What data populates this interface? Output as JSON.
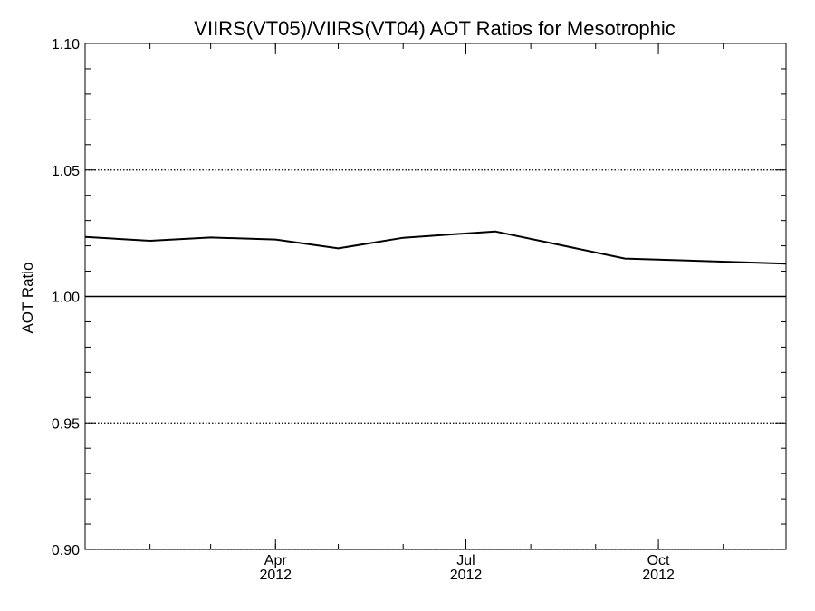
{
  "chart_data": {
    "type": "line",
    "title": "VIIRS(VT05)/VIIRS(VT04)  AOT Ratios for Mesotrophic",
    "ylabel": "AOT Ratio",
    "xlabel": "",
    "xlim": [
      "2012-01-01",
      "2012-12-01"
    ],
    "ylim": [
      0.9,
      1.1
    ],
    "y_ticks": [
      {
        "value": 0.9,
        "label": "0.90"
      },
      {
        "value": 0.95,
        "label": "0.95"
      },
      {
        "value": 1.0,
        "label": "1.00"
      },
      {
        "value": 1.05,
        "label": "1.05"
      },
      {
        "value": 1.1,
        "label": "1.10"
      }
    ],
    "x_ticks": [
      {
        "date": "2012-04-01",
        "label": "Apr",
        "year": "2012"
      },
      {
        "date": "2012-07-01",
        "label": "Jul",
        "year": "2012"
      },
      {
        "date": "2012-10-01",
        "label": "Oct",
        "year": "2012"
      }
    ],
    "dotted_reference_lines": [
      0.9,
      0.95,
      1.05
    ],
    "solid_reference_line": 1.0,
    "series": [
      {
        "x": [
          "2012-01-01",
          "2012-02-01",
          "2012-03-01",
          "2012-04-01",
          "2012-05-01",
          "2012-06-01",
          "2012-07-15",
          "2012-09-15",
          "2012-12-01"
        ],
        "y": [
          1.0235,
          1.022,
          1.0233,
          1.0225,
          1.019,
          1.0232,
          1.0257,
          1.015,
          1.013
        ]
      }
    ],
    "grid": false
  }
}
